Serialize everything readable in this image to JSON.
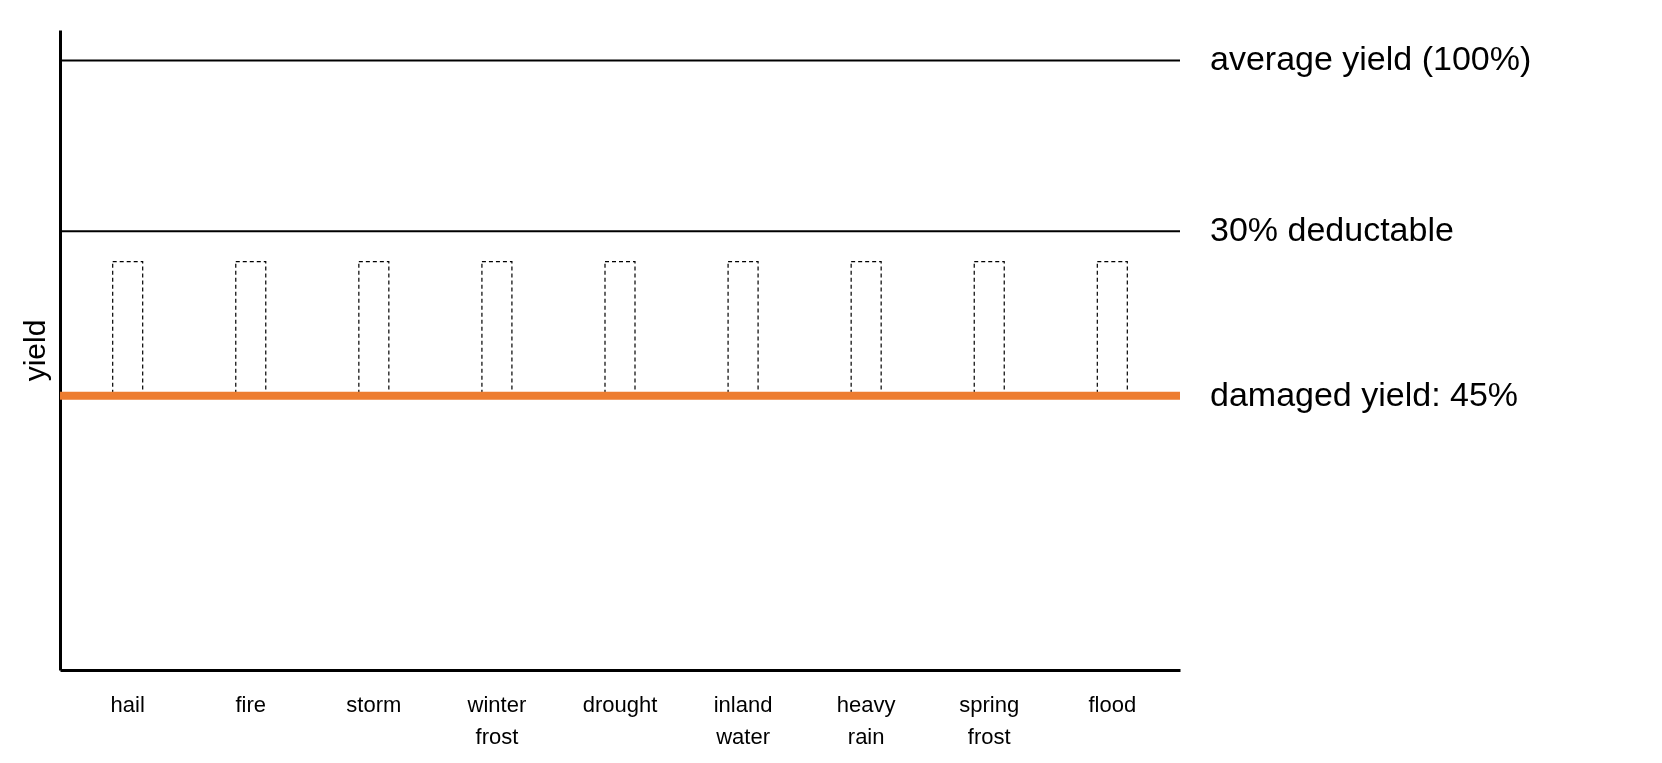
{
  "chart_data": {
    "type": "bar",
    "ylabel": "yield",
    "ylim": [
      0,
      105
    ],
    "tick_labels": "x",
    "categories": [
      "hail",
      "fire",
      "storm",
      "winter frost",
      "drought",
      "inland water",
      "heavy rain",
      "spring frost",
      "flood"
    ],
    "base": [
      45,
      45,
      45,
      45,
      45,
      45,
      45,
      45,
      45
    ],
    "values": [
      22,
      22,
      22,
      22,
      22,
      22,
      22,
      22,
      22
    ],
    "color": "#000000",
    "ref_lines": [
      {
        "axis": "y",
        "value": 100,
        "label": "average yield (100%)",
        "color": "#000000"
      },
      {
        "axis": "y",
        "value": 72,
        "label": "30% deductable",
        "color": "#000000"
      },
      {
        "axis": "y",
        "value": 45,
        "label": "damaged yield: 45%",
        "color": "#ed7d31"
      }
    ]
  }
}
